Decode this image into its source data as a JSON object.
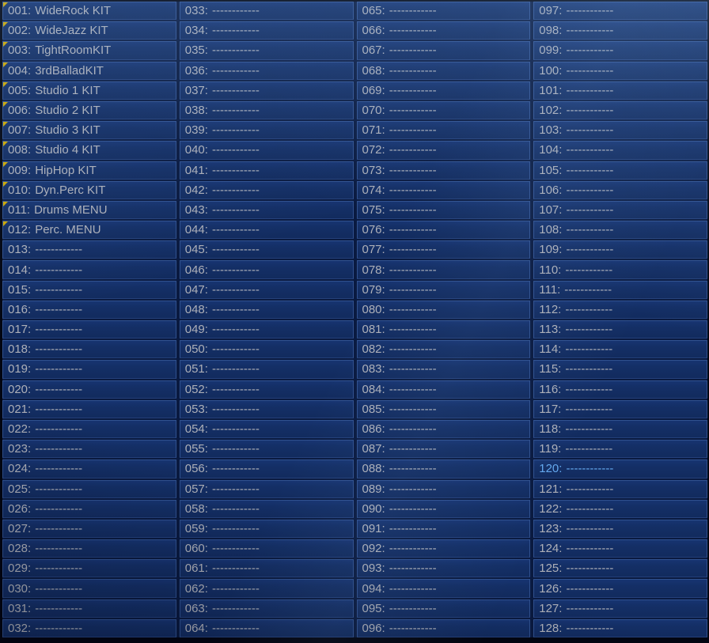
{
  "screen": {
    "kind": "patch-list",
    "selected_entry": "120"
  },
  "colors": {
    "cell_background": "#142f66",
    "cell_border": "#30518f",
    "grid_gap": "#0a1a40",
    "text": "#aeb0b8",
    "selected_text": "#64a8ee",
    "corner_marker": "#cfa800",
    "outer_background": "#000000"
  },
  "entries": [
    {
      "num": "001",
      "label": "WideRock KIT",
      "marked": true
    },
    {
      "num": "002",
      "label": "WideJazz KIT",
      "marked": true
    },
    {
      "num": "003",
      "label": "TightRoomKIT",
      "marked": true
    },
    {
      "num": "004",
      "label": "3rdBalladKIT",
      "marked": true
    },
    {
      "num": "005",
      "label": "Studio 1 KIT",
      "marked": true
    },
    {
      "num": "006",
      "label": "Studio 2 KIT",
      "marked": true
    },
    {
      "num": "007",
      "label": "Studio 3 KIT",
      "marked": true
    },
    {
      "num": "008",
      "label": "Studio 4 KIT",
      "marked": true
    },
    {
      "num": "009",
      "label": "HipHop KIT",
      "marked": true
    },
    {
      "num": "010",
      "label": "Dyn.Perc KIT",
      "marked": true
    },
    {
      "num": "011",
      "label": "Drums MENU",
      "marked": true
    },
    {
      "num": "012",
      "label": "Perc. MENU",
      "marked": true
    },
    {
      "num": "013",
      "label": "------------"
    },
    {
      "num": "014",
      "label": "------------"
    },
    {
      "num": "015",
      "label": "------------"
    },
    {
      "num": "016",
      "label": "------------"
    },
    {
      "num": "017",
      "label": "------------"
    },
    {
      "num": "018",
      "label": "------------"
    },
    {
      "num": "019",
      "label": "------------"
    },
    {
      "num": "020",
      "label": "------------"
    },
    {
      "num": "021",
      "label": "------------"
    },
    {
      "num": "022",
      "label": "------------"
    },
    {
      "num": "023",
      "label": "------------"
    },
    {
      "num": "024",
      "label": "------------"
    },
    {
      "num": "025",
      "label": "------------"
    },
    {
      "num": "026",
      "label": "------------"
    },
    {
      "num": "027",
      "label": "------------"
    },
    {
      "num": "028",
      "label": "------------"
    },
    {
      "num": "029",
      "label": "------------"
    },
    {
      "num": "030",
      "label": "------------"
    },
    {
      "num": "031",
      "label": "------------"
    },
    {
      "num": "032",
      "label": "------------"
    },
    {
      "num": "033",
      "label": "------------"
    },
    {
      "num": "034",
      "label": "------------"
    },
    {
      "num": "035",
      "label": "------------"
    },
    {
      "num": "036",
      "label": "------------"
    },
    {
      "num": "037",
      "label": "------------"
    },
    {
      "num": "038",
      "label": "------------"
    },
    {
      "num": "039",
      "label": "------------"
    },
    {
      "num": "040",
      "label": "------------"
    },
    {
      "num": "041",
      "label": "------------"
    },
    {
      "num": "042",
      "label": "------------"
    },
    {
      "num": "043",
      "label": "------------"
    },
    {
      "num": "044",
      "label": "------------"
    },
    {
      "num": "045",
      "label": "------------"
    },
    {
      "num": "046",
      "label": "------------"
    },
    {
      "num": "047",
      "label": "------------"
    },
    {
      "num": "048",
      "label": "------------"
    },
    {
      "num": "049",
      "label": "------------"
    },
    {
      "num": "050",
      "label": "------------"
    },
    {
      "num": "051",
      "label": "------------"
    },
    {
      "num": "052",
      "label": "------------"
    },
    {
      "num": "053",
      "label": "------------"
    },
    {
      "num": "054",
      "label": "------------"
    },
    {
      "num": "055",
      "label": "------------"
    },
    {
      "num": "056",
      "label": "------------"
    },
    {
      "num": "057",
      "label": "------------"
    },
    {
      "num": "058",
      "label": "------------"
    },
    {
      "num": "059",
      "label": "------------"
    },
    {
      "num": "060",
      "label": "------------"
    },
    {
      "num": "061",
      "label": "------------"
    },
    {
      "num": "062",
      "label": "------------"
    },
    {
      "num": "063",
      "label": "------------"
    },
    {
      "num": "064",
      "label": "------------"
    },
    {
      "num": "065",
      "label": "------------"
    },
    {
      "num": "066",
      "label": "------------"
    },
    {
      "num": "067",
      "label": "------------"
    },
    {
      "num": "068",
      "label": "------------"
    },
    {
      "num": "069",
      "label": "------------"
    },
    {
      "num": "070",
      "label": "------------"
    },
    {
      "num": "071",
      "label": "------------"
    },
    {
      "num": "072",
      "label": "------------"
    },
    {
      "num": "073",
      "label": "------------"
    },
    {
      "num": "074",
      "label": "------------"
    },
    {
      "num": "075",
      "label": "------------"
    },
    {
      "num": "076",
      "label": "------------"
    },
    {
      "num": "077",
      "label": "------------"
    },
    {
      "num": "078",
      "label": "------------"
    },
    {
      "num": "079",
      "label": "------------"
    },
    {
      "num": "080",
      "label": "------------"
    },
    {
      "num": "081",
      "label": "------------"
    },
    {
      "num": "082",
      "label": "------------"
    },
    {
      "num": "083",
      "label": "------------"
    },
    {
      "num": "084",
      "label": "------------"
    },
    {
      "num": "085",
      "label": "------------"
    },
    {
      "num": "086",
      "label": "------------"
    },
    {
      "num": "087",
      "label": "------------"
    },
    {
      "num": "088",
      "label": "------------"
    },
    {
      "num": "089",
      "label": "------------"
    },
    {
      "num": "090",
      "label": "------------"
    },
    {
      "num": "091",
      "label": "------------"
    },
    {
      "num": "092",
      "label": "------------"
    },
    {
      "num": "093",
      "label": "------------"
    },
    {
      "num": "094",
      "label": "------------"
    },
    {
      "num": "095",
      "label": "------------"
    },
    {
      "num": "096",
      "label": "------------"
    },
    {
      "num": "097",
      "label": "------------"
    },
    {
      "num": "098",
      "label": "------------"
    },
    {
      "num": "099",
      "label": "------------"
    },
    {
      "num": "100",
      "label": "------------"
    },
    {
      "num": "101",
      "label": "------------"
    },
    {
      "num": "102",
      "label": "------------"
    },
    {
      "num": "103",
      "label": "------------"
    },
    {
      "num": "104",
      "label": "------------"
    },
    {
      "num": "105",
      "label": "------------"
    },
    {
      "num": "106",
      "label": "------------"
    },
    {
      "num": "107",
      "label": "------------"
    },
    {
      "num": "108",
      "label": "------------"
    },
    {
      "num": "109",
      "label": "------------"
    },
    {
      "num": "110",
      "label": "------------"
    },
    {
      "num": "111",
      "label": "------------"
    },
    {
      "num": "112",
      "label": "------------"
    },
    {
      "num": "113",
      "label": "------------"
    },
    {
      "num": "114",
      "label": "------------"
    },
    {
      "num": "115",
      "label": "------------"
    },
    {
      "num": "116",
      "label": "------------"
    },
    {
      "num": "117",
      "label": "------------"
    },
    {
      "num": "118",
      "label": "------------"
    },
    {
      "num": "119",
      "label": "------------"
    },
    {
      "num": "120",
      "label": "------------",
      "selected": true
    },
    {
      "num": "121",
      "label": "------------"
    },
    {
      "num": "122",
      "label": "------------"
    },
    {
      "num": "123",
      "label": "------------"
    },
    {
      "num": "124",
      "label": "------------"
    },
    {
      "num": "125",
      "label": "------------"
    },
    {
      "num": "126",
      "label": "------------"
    },
    {
      "num": "127",
      "label": "------------"
    },
    {
      "num": "128",
      "label": "------------"
    }
  ]
}
